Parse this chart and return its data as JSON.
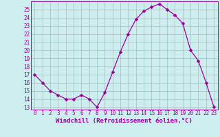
{
  "x": [
    0,
    1,
    2,
    3,
    4,
    5,
    6,
    7,
    8,
    9,
    10,
    11,
    12,
    13,
    14,
    15,
    16,
    17,
    18,
    19,
    20,
    21,
    22,
    23
  ],
  "y": [
    17,
    16,
    15,
    14.5,
    14,
    14,
    14.5,
    14,
    13,
    14.8,
    17.3,
    19.8,
    22,
    23.8,
    24.8,
    25.3,
    25.7,
    25.0,
    24.3,
    23.3,
    20.0,
    18.7,
    16.0,
    13.0
  ],
  "line_color": "#990099",
  "marker": "D",
  "marker_size": 2.5,
  "bg_color": "#cceeee",
  "grid_color": "#aabbbb",
  "xlabel": "Windchill (Refroidissement éolien,°C)",
  "xlim": [
    -0.5,
    23.5
  ],
  "ylim_min": 12.7,
  "ylim_max": 26.0,
  "yticks": [
    13,
    14,
    15,
    16,
    17,
    18,
    19,
    20,
    21,
    22,
    23,
    24,
    25
  ],
  "xticks": [
    0,
    1,
    2,
    3,
    4,
    5,
    6,
    7,
    8,
    9,
    10,
    11,
    12,
    13,
    14,
    15,
    16,
    17,
    18,
    19,
    20,
    21,
    22,
    23
  ],
  "tick_fontsize": 5.5,
  "label_fontsize": 6.5
}
